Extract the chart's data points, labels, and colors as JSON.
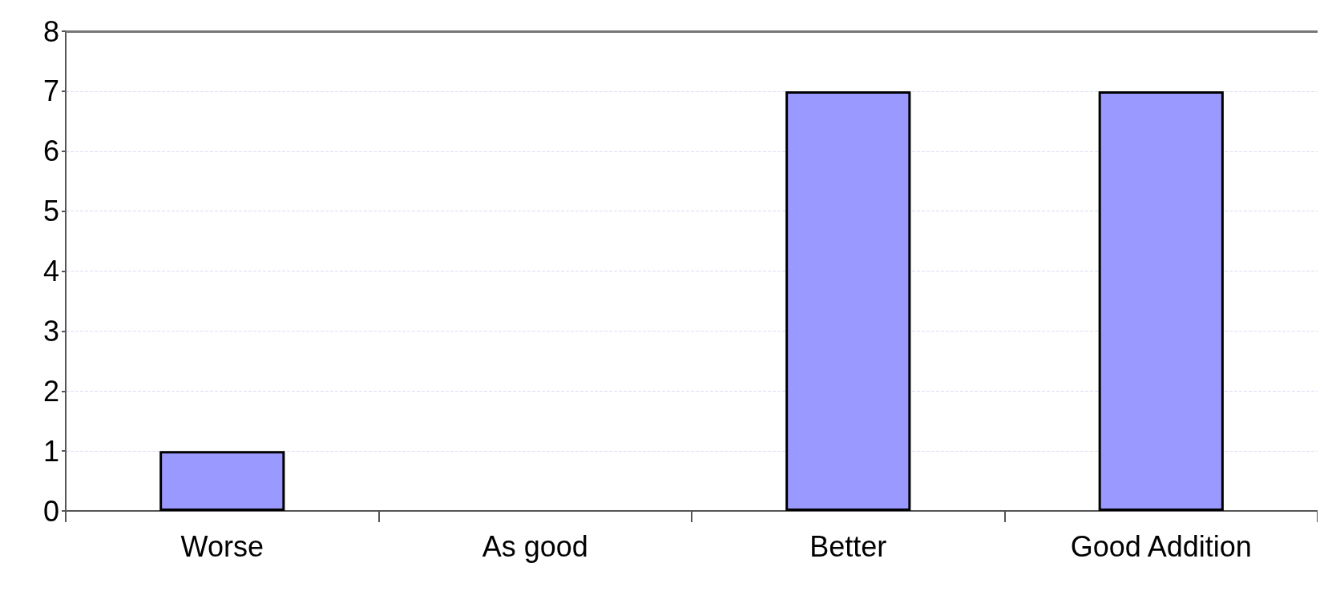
{
  "chart_data": {
    "type": "bar",
    "categories": [
      "Worse",
      "As good",
      "Better",
      "Good Addition"
    ],
    "values": [
      1,
      0,
      7,
      7
    ],
    "color": "#9999ff",
    "ylim": [
      0,
      8
    ],
    "yticks": [
      0,
      1,
      2,
      3,
      4,
      5,
      6,
      7,
      8
    ],
    "grid": "y"
  }
}
